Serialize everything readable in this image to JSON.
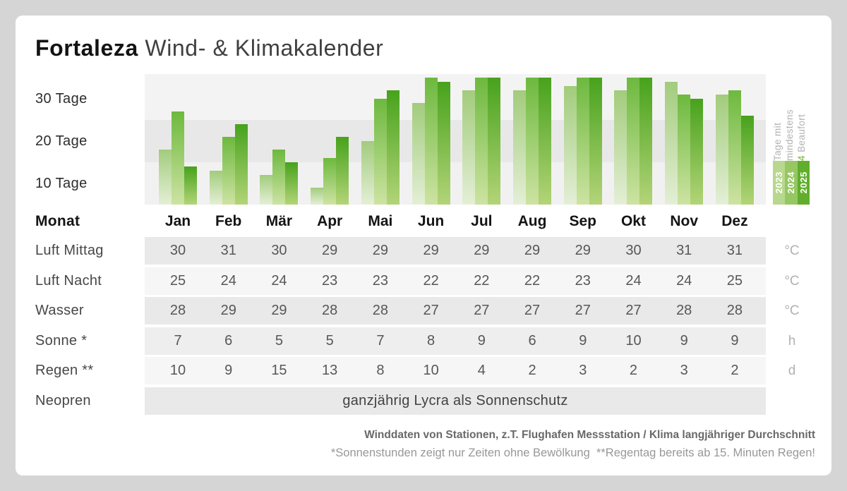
{
  "title": {
    "brand": "Fortaleza",
    "subtitle": "Wind- & Klimakalender"
  },
  "chart_data": {
    "type": "bar",
    "title": "Tage mit mindestens 4 Beaufort",
    "categories": [
      "Jan",
      "Feb",
      "Mär",
      "Apr",
      "Mai",
      "Jun",
      "Jul",
      "Aug",
      "Sep",
      "Okt",
      "Nov",
      "Dez"
    ],
    "series": [
      {
        "name": "2023",
        "values": [
          13,
          8,
          7,
          4,
          15,
          24,
          27,
          27,
          28,
          27,
          29,
          26
        ]
      },
      {
        "name": "2024",
        "values": [
          22,
          16,
          13,
          11,
          25,
          30,
          30,
          30,
          30,
          30,
          26,
          27
        ]
      },
      {
        "name": "2025",
        "values": [
          9,
          19,
          10,
          16,
          27,
          29,
          30,
          30,
          30,
          30,
          25,
          21
        ]
      }
    ],
    "ylabel": "Tage",
    "ylim": [
      0,
      31
    ],
    "ytick_labels": [
      "30 Tage",
      "20 Tage",
      "10 Tage"
    ],
    "grid": "horizontal-bands",
    "legend_position": "right"
  },
  "chart_style": {
    "series_colors": [
      {
        "top": "#a2cc7c",
        "bottom": "#e4efd6",
        "legend": "#b7d88e"
      },
      {
        "top": "#6db93e",
        "bottom": "#cde3a2",
        "legend": "#97c763"
      },
      {
        "top": "#47a21c",
        "bottom": "#b3d478",
        "legend": "#61ae2d"
      }
    ],
    "accent_green": "#74b82c"
  },
  "legend": {
    "line1": "Tage mit",
    "line2": "mindestens",
    "line3_highlight": "4",
    "line3_rest": " Beaufort"
  },
  "table": {
    "monat_label": "Monat",
    "rows": [
      {
        "label": "Luft Mittag",
        "unit": "°C",
        "values": [
          "30",
          "31",
          "30",
          "29",
          "29",
          "29",
          "29",
          "29",
          "29",
          "30",
          "31",
          "31"
        ]
      },
      {
        "label": "Luft Nacht",
        "unit": "°C",
        "values": [
          "25",
          "24",
          "24",
          "23",
          "23",
          "22",
          "22",
          "22",
          "23",
          "24",
          "24",
          "25"
        ]
      },
      {
        "label": "Wasser",
        "unit": "°C",
        "values": [
          "28",
          "29",
          "29",
          "28",
          "28",
          "27",
          "27",
          "27",
          "27",
          "27",
          "28",
          "28"
        ]
      },
      {
        "label": "Sonne *",
        "unit": "h",
        "values": [
          "7",
          "6",
          "5",
          "5",
          "7",
          "8",
          "9",
          "6",
          "9",
          "10",
          "9",
          "9"
        ]
      },
      {
        "label": "Regen **",
        "unit": "d",
        "values": [
          "10",
          "9",
          "15",
          "13",
          "8",
          "10",
          "4",
          "2",
          "3",
          "2",
          "3",
          "2"
        ]
      }
    ],
    "neopren": {
      "label": "Neopren",
      "text": "ganzjährig Lycra als Sonnenschutz"
    }
  },
  "footer": {
    "line1": "Winddaten von Stationen, z.T. Flughafen Messstation / Klima langjähriger Durchschnitt",
    "line2": "*Sonnenstunden zeigt nur Zeiten ohne Bewölkung  **Regentag bereits ab 15. Minuten Regen!"
  }
}
